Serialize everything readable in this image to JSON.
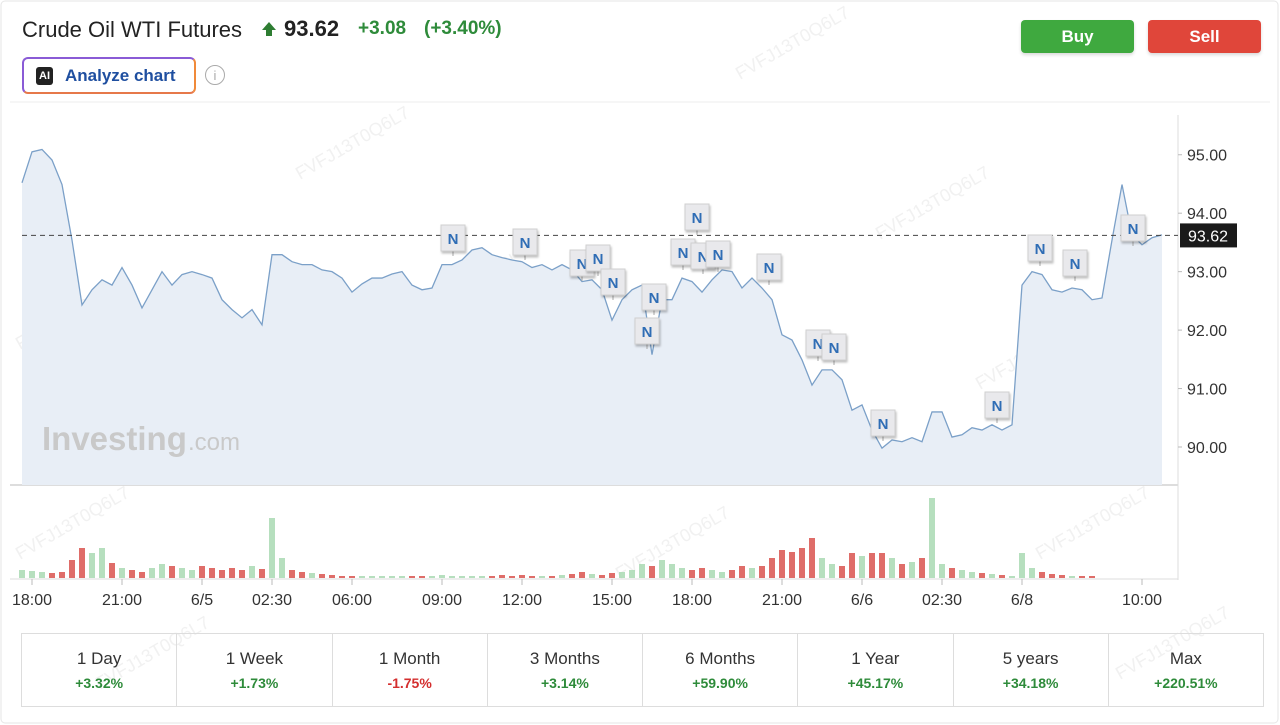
{
  "header": {
    "title": "Crude Oil WTI Futures",
    "price": "93.62",
    "change": "+3.08",
    "change_pct": "(+3.40%)",
    "ai_badge": "AI",
    "analyze": "Analyze chart",
    "info": "i",
    "buy": "Buy",
    "sell": "Sell"
  },
  "watermark": {
    "brand": "Investing",
    "suffix": ".com",
    "code": "FVFJ13T0Q6L7"
  },
  "news_label": "N",
  "chart_data": {
    "type": "line",
    "color": "#7ba0c8",
    "fill": "#e8eef6",
    "categories": [
      null,
      "18:00",
      null,
      null,
      null,
      null,
      null,
      null,
      null,
      null,
      "21:00",
      null,
      null,
      null,
      null,
      null,
      null,
      null,
      "6/5",
      null,
      null,
      null,
      null,
      null,
      null,
      "02:30",
      null,
      null,
      null,
      null,
      null,
      null,
      null,
      "06:00",
      null,
      null,
      null,
      null,
      null,
      null,
      null,
      null,
      "09:00",
      null,
      null,
      null,
      null,
      null,
      null,
      null,
      "12:00",
      null,
      null,
      null,
      null,
      null,
      null,
      null,
      null,
      "15:00",
      null,
      null,
      null,
      null,
      null,
      null,
      null,
      "18:00",
      null,
      null,
      null,
      null,
      null,
      null,
      null,
      null,
      "21:00",
      null,
      null,
      null,
      null,
      null,
      null,
      null,
      "6/6",
      null,
      null,
      null,
      null,
      null,
      null,
      null,
      "02:30",
      null,
      null,
      null,
      null,
      null,
      null,
      null,
      "6/8",
      null,
      null,
      null,
      null,
      null,
      null,
      null,
      null,
      null,
      null,
      null,
      "10:00",
      null,
      null
    ],
    "values": [
      94.52,
      95.05,
      95.09,
      94.91,
      94.49,
      93.54,
      92.43,
      92.69,
      92.86,
      92.77,
      93.07,
      92.77,
      92.38,
      92.69,
      93.0,
      92.77,
      92.95,
      93.0,
      92.95,
      92.89,
      92.52,
      92.35,
      92.21,
      92.35,
      92.09,
      93.29,
      93.29,
      93.17,
      93.12,
      93.12,
      93.03,
      93.0,
      92.89,
      92.65,
      92.79,
      92.89,
      92.89,
      92.96,
      93.0,
      92.77,
      92.69,
      92.72,
      93.12,
      93.12,
      93.2,
      93.37,
      93.41,
      93.29,
      93.24,
      93.2,
      93.17,
      93.07,
      93.12,
      93.03,
      93.12,
      93.03,
      92.83,
      92.86,
      92.69,
      92.17,
      92.52,
      92.69,
      92.77,
      91.58,
      92.52,
      92.52,
      92.89,
      92.83,
      92.65,
      92.86,
      93.03,
      93.0,
      92.72,
      92.89,
      92.72,
      92.52,
      91.92,
      91.83,
      91.49,
      91.06,
      91.32,
      91.32,
      91.15,
      90.63,
      90.72,
      90.29,
      89.98,
      90.12,
      90.09,
      90.16,
      90.09,
      90.6,
      90.6,
      90.17,
      90.21,
      90.33,
      90.29,
      90.38,
      90.29,
      90.38,
      92.77,
      93.0,
      92.95,
      92.69,
      92.65,
      92.72,
      92.69,
      92.52,
      92.55,
      93.54,
      94.49,
      93.63,
      93.46,
      93.58,
      93.63
    ],
    "last_price": 93.62,
    "ylim": [
      89.35,
      95.68
    ],
    "yticks": [
      {
        "value": 90,
        "label": "90.00"
      },
      {
        "value": 91,
        "label": "91.00"
      },
      {
        "value": 92,
        "label": "92.00"
      },
      {
        "value": 93,
        "label": "93.00"
      },
      {
        "value": 94,
        "label": "94.00"
      },
      {
        "value": 95,
        "label": "95.00"
      }
    ],
    "volume": {
      "up_color": "#a9d9b3",
      "down_color": "#d9534f",
      "ylim": [
        0,
        90
      ],
      "values": [
        8,
        7,
        6,
        5,
        6,
        18,
        30,
        25,
        30,
        15,
        10,
        8,
        6,
        10,
        14,
        12,
        10,
        8,
        12,
        10,
        8,
        10,
        8,
        12,
        9,
        60,
        20,
        8,
        6,
        5,
        4,
        3,
        2,
        2,
        2,
        2,
        2,
        2,
        2,
        2,
        2,
        2,
        3,
        2,
        2,
        2,
        2,
        2,
        3,
        2,
        3,
        2,
        2,
        2,
        3,
        4,
        6,
        4,
        3,
        5,
        6,
        8,
        14,
        12,
        18,
        14,
        10,
        8,
        10,
        8,
        6,
        8,
        12,
        10,
        12,
        20,
        28,
        26,
        30,
        40,
        20,
        14,
        12,
        25,
        22,
        25,
        25,
        20,
        14,
        16,
        20,
        80,
        14,
        10,
        8,
        6,
        5,
        4,
        3,
        2,
        25,
        10,
        6,
        4,
        3,
        2,
        2,
        2,
        0,
        0,
        0,
        0,
        0,
        0,
        0
      ]
    }
  },
  "periods": [
    {
      "label": "1 Day",
      "change": "+3.32%"
    },
    {
      "label": "1 Week",
      "change": "+1.73%"
    },
    {
      "label": "1 Month",
      "change": "-1.75%"
    },
    {
      "label": "3 Months",
      "change": "+3.14%"
    },
    {
      "label": "6 Months",
      "change": "+59.90%"
    },
    {
      "label": "1 Year",
      "change": "+45.17%"
    },
    {
      "label": "5 years",
      "change": "+34.18%"
    },
    {
      "label": "Max",
      "change": "+220.51%"
    }
  ]
}
